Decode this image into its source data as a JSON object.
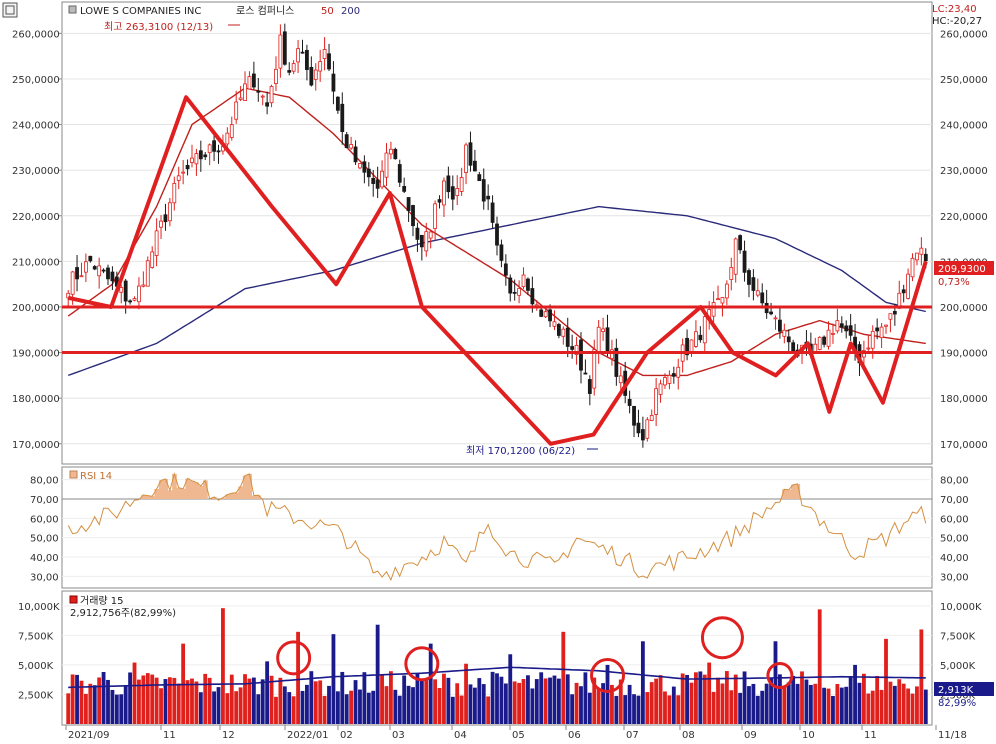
{
  "header": {
    "ticker": "LOWE S COMPANIES INC",
    "name_kr": "로스 컴퍼니스",
    "ma_short": "50",
    "ma_long": "200",
    "lc": "LC:23,40",
    "hc": "HC:-20,27"
  },
  "annotations": {
    "high": "최고 263,3100 (12/13)",
    "low": "최저 170,1200 (06/22)",
    "last_price": "209,9300",
    "last_change": "0,73%",
    "last_volume": "2,913K",
    "last_volume_pct": "82,99%"
  },
  "panels": {
    "rsi_label": "RSI 14",
    "volume_label": "거래량 15",
    "volume_info": "2,912,756주(82,99%)"
  },
  "colors": {
    "up": "#e0201c",
    "down": "#1a1a1a",
    "ma50": "#c0201c",
    "ma200": "#2a2a7a",
    "rsi": "#d49040",
    "rsi_fill": "#f0b890",
    "volume_up": "#e0201c",
    "volume_down": "#1a1a8a",
    "annotation": "#e02020",
    "price_box": "#e02020",
    "volume_box": "#1a1a8a"
  },
  "chart_data": [
    {
      "type": "candlestick",
      "ylim": [
        166,
        266
      ],
      "y_ticks": [
        170,
        180,
        190,
        200,
        210,
        220,
        230,
        240,
        250,
        260
      ],
      "y_tick_labels": [
        "170,0000",
        "180,0000",
        "190,0000",
        "200,0000",
        "210,0000",
        "220,0000",
        "230,0000",
        "240,0000",
        "250,0000",
        "260,0000"
      ],
      "x_labels": [
        "2021/09",
        "11",
        "12",
        "2022/01",
        "02",
        "03",
        "04",
        "05",
        "06",
        "07",
        "08",
        "09",
        "10",
        "11",
        "11/18"
      ],
      "close_key": [
        [
          0,
          205
        ],
        [
          5,
          210
        ],
        [
          12,
          203
        ],
        [
          15,
          201
        ],
        [
          20,
          215
        ],
        [
          25,
          228
        ],
        [
          30,
          233
        ],
        [
          35,
          236
        ],
        [
          40,
          248
        ],
        [
          42,
          250
        ],
        [
          45,
          244
        ],
        [
          48,
          258
        ],
        [
          50,
          252
        ],
        [
          52,
          256
        ],
        [
          55,
          250
        ],
        [
          58,
          257
        ],
        [
          60,
          248
        ],
        [
          62,
          238
        ],
        [
          66,
          230
        ],
        [
          70,
          226
        ],
        [
          73,
          235
        ],
        [
          76,
          225
        ],
        [
          80,
          212
        ],
        [
          82,
          218
        ],
        [
          85,
          228
        ],
        [
          88,
          224
        ],
        [
          90,
          235
        ],
        [
          92,
          230
        ],
        [
          95,
          222
        ],
        [
          97,
          212
        ],
        [
          100,
          202
        ],
        [
          103,
          208
        ],
        [
          106,
          200
        ],
        [
          110,
          196
        ],
        [
          115,
          190
        ],
        [
          118,
          183
        ],
        [
          120,
          195
        ],
        [
          122,
          192
        ],
        [
          125,
          183
        ],
        [
          128,
          175
        ],
        [
          130,
          172
        ],
        [
          133,
          181
        ],
        [
          136,
          185
        ],
        [
          139,
          190
        ],
        [
          142,
          193
        ],
        [
          145,
          198
        ],
        [
          148,
          201
        ],
        [
          151,
          214
        ],
        [
          153,
          208
        ],
        [
          156,
          202
        ],
        [
          159,
          198
        ],
        [
          162,
          194
        ],
        [
          165,
          190
        ],
        [
          168,
          189
        ],
        [
          171,
          193
        ],
        [
          174,
          197
        ],
        [
          177,
          192
        ],
        [
          179,
          189
        ],
        [
          182,
          194
        ],
        [
          185,
          196
        ],
        [
          187,
          199
        ],
        [
          190,
          208
        ],
        [
          192,
          213
        ],
        [
          194,
          211
        ]
      ],
      "high_label": "최고 263,3100 (12/13)",
      "low_label": "최저 170,1200 (06/22)",
      "horizontal_lines": [
        200,
        190
      ],
      "pattern_line": [
        [
          0,
          202
        ],
        [
          4,
          200
        ],
        [
          11,
          246
        ],
        [
          19,
          222
        ],
        [
          25,
          205
        ],
        [
          30,
          225
        ],
        [
          33,
          200
        ],
        [
          45,
          170
        ],
        [
          49,
          172
        ],
        [
          54,
          190
        ],
        [
          59,
          200
        ],
        [
          62,
          190
        ],
        [
          66,
          185
        ],
        [
          69,
          192
        ],
        [
          71,
          177
        ],
        [
          73,
          192
        ],
        [
          76,
          179
        ],
        [
          80,
          210
        ]
      ],
      "ma50_key": [
        [
          0,
          198
        ],
        [
          10,
          205
        ],
        [
          20,
          222
        ],
        [
          28,
          240
        ],
        [
          40,
          248
        ],
        [
          50,
          246
        ],
        [
          60,
          238
        ],
        [
          70,
          228
        ],
        [
          80,
          218
        ],
        [
          90,
          212
        ],
        [
          100,
          206
        ],
        [
          110,
          198
        ],
        [
          120,
          190
        ],
        [
          130,
          185
        ],
        [
          140,
          185
        ],
        [
          150,
          188
        ],
        [
          160,
          194
        ],
        [
          170,
          197
        ],
        [
          180,
          194
        ],
        [
          194,
          192
        ]
      ],
      "ma200_key": [
        [
          0,
          185
        ],
        [
          20,
          192
        ],
        [
          40,
          204
        ],
        [
          60,
          208
        ],
        [
          80,
          214
        ],
        [
          100,
          218
        ],
        [
          120,
          222
        ],
        [
          140,
          220
        ],
        [
          160,
          215
        ],
        [
          175,
          208
        ],
        [
          185,
          201
        ],
        [
          194,
          199
        ]
      ]
    },
    {
      "type": "line",
      "name": "RSI 14",
      "ylim": [
        25,
        85
      ],
      "y_ticks": [
        30,
        40,
        50,
        60,
        70,
        80
      ],
      "y_tick_labels": [
        "30,00",
        "40,00",
        "50,00",
        "60,00",
        "70,00",
        "80,00"
      ],
      "ref_line": 70,
      "values_key": [
        [
          0,
          55
        ],
        [
          10,
          62
        ],
        [
          20,
          78
        ],
        [
          25,
          80
        ],
        [
          35,
          72
        ],
        [
          40,
          82
        ],
        [
          45,
          65
        ],
        [
          55,
          58
        ],
        [
          62,
          52
        ],
        [
          70,
          30
        ],
        [
          80,
          40
        ],
        [
          85,
          48
        ],
        [
          90,
          35
        ],
        [
          95,
          58
        ],
        [
          100,
          42
        ],
        [
          110,
          35
        ],
        [
          115,
          50
        ],
        [
          125,
          40
        ],
        [
          130,
          33
        ],
        [
          140,
          40
        ],
        [
          150,
          50
        ],
        [
          160,
          68
        ],
        [
          165,
          74
        ],
        [
          170,
          60
        ],
        [
          178,
          42
        ],
        [
          185,
          50
        ],
        [
          190,
          60
        ],
        [
          194,
          62
        ]
      ]
    },
    {
      "type": "bar",
      "name": "거래량 15",
      "ylim": [
        0,
        11000
      ],
      "y_ticks": [
        2500,
        5000,
        7500,
        10000
      ],
      "y_tick_labels": [
        "2,500K",
        "5,000K",
        "7,500K",
        "10,000K"
      ],
      "avg_key": [
        [
          0,
          3100
        ],
        [
          20,
          3300
        ],
        [
          40,
          3400
        ],
        [
          60,
          4000
        ],
        [
          80,
          4300
        ],
        [
          100,
          4800
        ],
        [
          120,
          4500
        ],
        [
          140,
          3800
        ],
        [
          160,
          3900
        ],
        [
          175,
          4000
        ],
        [
          194,
          3900
        ]
      ],
      "spikes": [
        [
          8,
          4400
        ],
        [
          15,
          5200
        ],
        [
          26,
          6800
        ],
        [
          35,
          9800
        ],
        [
          45,
          5300
        ],
        [
          52,
          7800
        ],
        [
          60,
          7600
        ],
        [
          70,
          8400
        ],
        [
          82,
          6800
        ],
        [
          90,
          5100
        ],
        [
          100,
          5900
        ],
        [
          112,
          7800
        ],
        [
          122,
          5000
        ],
        [
          130,
          7000
        ],
        [
          145,
          5200
        ],
        [
          160,
          7000
        ],
        [
          170,
          9700
        ],
        [
          178,
          5000
        ],
        [
          185,
          7200
        ],
        [
          193,
          8000
        ]
      ],
      "last_bar": 2913
    }
  ]
}
